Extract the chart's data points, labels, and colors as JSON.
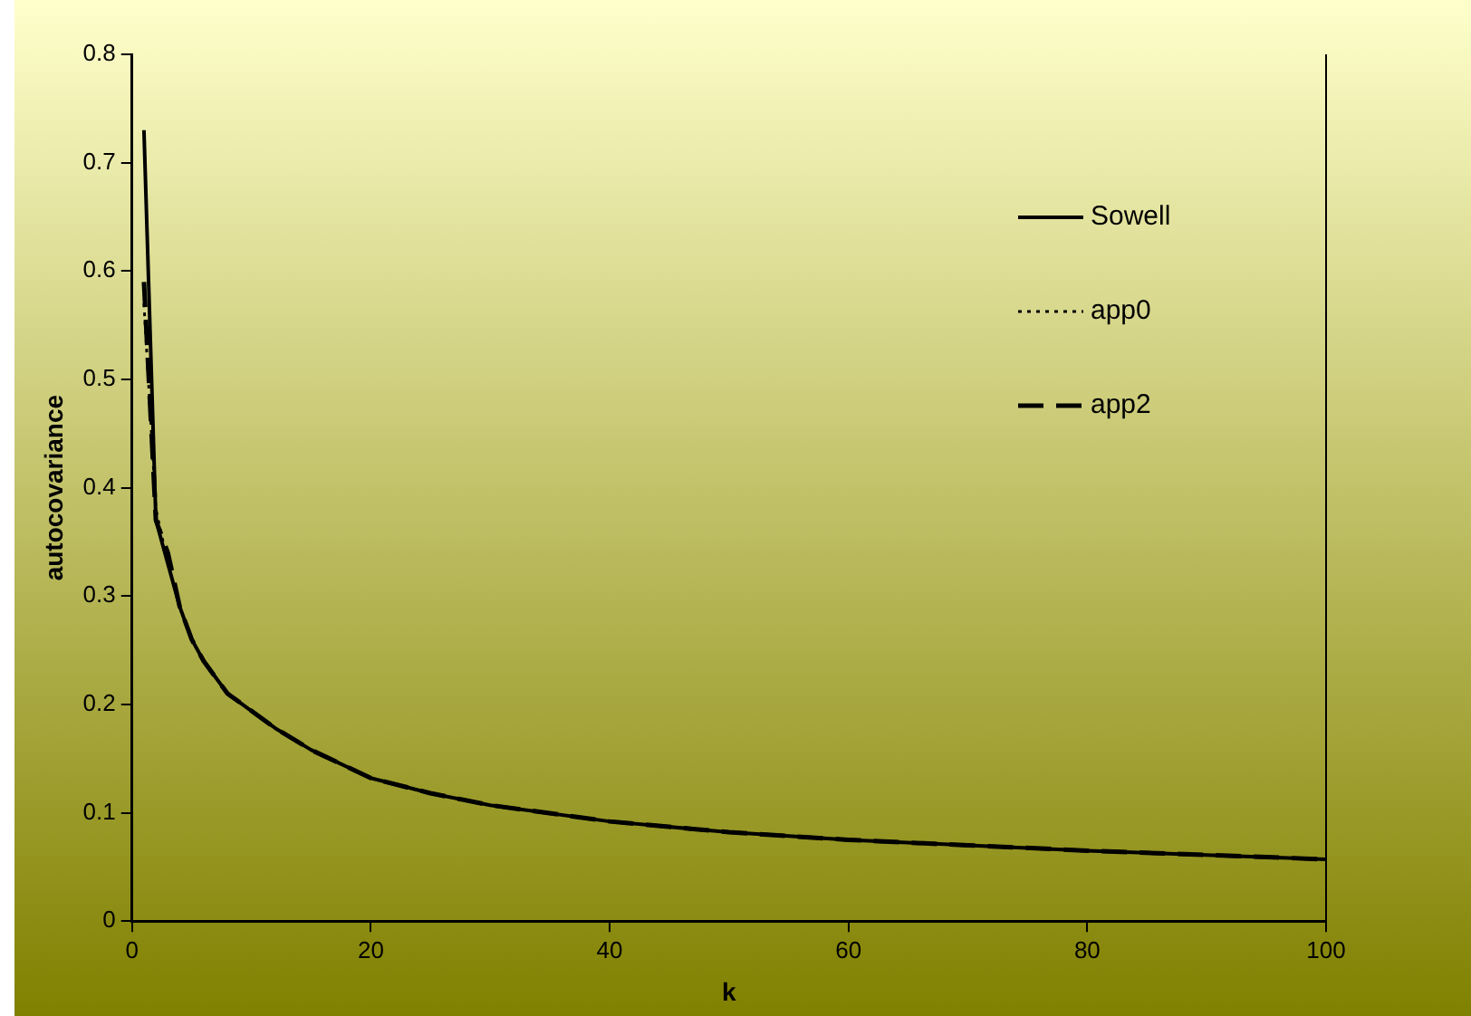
{
  "chart_data": {
    "type": "line",
    "xlabel": "k",
    "ylabel": "autocovariance",
    "x": [
      1,
      2,
      3,
      4,
      5,
      6,
      7,
      8,
      10,
      12,
      15,
      20,
      25,
      30,
      40,
      50,
      60,
      70,
      80,
      90,
      100
    ],
    "series": [
      {
        "name": "Sowell",
        "color": "#000000",
        "line_style": "solid",
        "values": [
          0.73,
          0.37,
          0.33,
          0.29,
          0.26,
          0.24,
          0.225,
          0.21,
          0.194,
          0.178,
          0.158,
          0.132,
          0.118,
          0.107,
          0.092,
          0.082,
          0.075,
          0.07,
          0.065,
          0.061,
          0.057
        ]
      },
      {
        "name": "app0",
        "color": "#000000",
        "line_style": "dotted",
        "x": [
          1,
          2,
          3,
          4
        ],
        "values": [
          0.57,
          0.38,
          0.33,
          0.29
        ]
      },
      {
        "name": "app2",
        "color": "#000000",
        "line_style": "dashed",
        "values": [
          0.59,
          0.37,
          0.34,
          0.29,
          0.26,
          0.24,
          0.225,
          0.21,
          0.194,
          0.178,
          0.158,
          0.132,
          0.118,
          0.107,
          0.092,
          0.082,
          0.075,
          0.07,
          0.065,
          0.061,
          0.057
        ]
      }
    ],
    "xlim": [
      0,
      100
    ],
    "xticks": [
      0,
      20,
      40,
      60,
      80,
      100
    ],
    "ylim": [
      0,
      0.8
    ],
    "yticks": [
      0,
      0.1,
      0.2,
      0.3,
      0.4,
      0.5,
      0.6,
      0.7,
      0.8
    ],
    "grid": false,
    "legend": "top right",
    "marker": "none"
  }
}
